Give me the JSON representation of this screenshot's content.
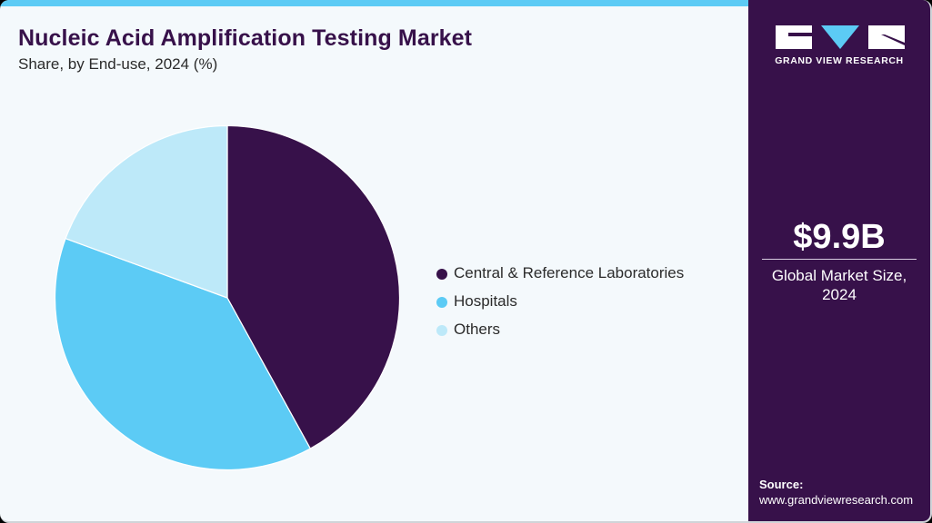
{
  "header": {
    "title": "Nucleic Acid Amplification Testing Market",
    "subtitle": "Share, by End-use, 2024 (%)"
  },
  "colors": {
    "accent": "#5ccbf5",
    "brand_dark": "#37114a",
    "background": "#f4f9fc"
  },
  "legend": {
    "items": [
      {
        "label": "Central & Reference Laboratories",
        "color": "#37114a"
      },
      {
        "label": "Hospitals",
        "color": "#5ccbf5"
      },
      {
        "label": "Others",
        "color": "#bde9f9"
      }
    ]
  },
  "sidebar": {
    "logo_text": "GRAND VIEW RESEARCH",
    "market_value": "$9.9B",
    "market_label_line1": "Global Market Size,",
    "market_label_line2": "2024",
    "source_label": "Source:",
    "source_url": "www.grandviewresearch.com"
  },
  "chart_data": {
    "type": "pie",
    "title": "Nucleic Acid Amplification Testing Market",
    "subtitle": "Share, by End-use, 2024 (%)",
    "categories": [
      "Central & Reference Laboratories",
      "Hospitals",
      "Others"
    ],
    "values": [
      42.0,
      38.6,
      19.4
    ],
    "colors": [
      "#37114a",
      "#5ccbf5",
      "#bde9f9"
    ],
    "start_angle": "12 o'clock, clockwise",
    "legend_position": "right",
    "data_labels": false
  }
}
